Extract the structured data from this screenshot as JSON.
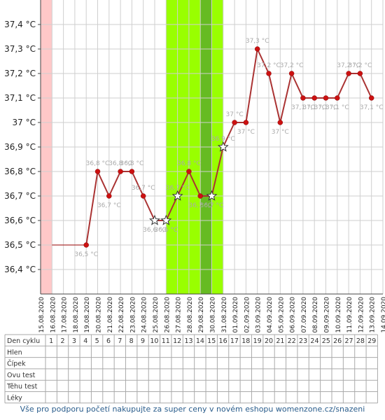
{
  "chart_data": {
    "type": "line",
    "ylim": [
      36.3,
      37.5
    ],
    "y_ticks": [
      "36,4 °C",
      "36,5 °C",
      "36,6 °C",
      "36,7 °C",
      "36,8 °C",
      "36,9 °C",
      "37 °C",
      "37,1 °C",
      "37,2 °C",
      "37,3 °C",
      "37,4 °C"
    ],
    "dates": [
      "15.08.2020",
      "16.08.2020",
      "17.08.2020",
      "18.08.2020",
      "19.08.2020",
      "20.08.2020",
      "21.08.2020",
      "22.08.2020",
      "23.08.2020",
      "24.08.2020",
      "25.08.2020",
      "26.08.2020",
      "27.08.2020",
      "28.08.2020",
      "29.08.2020",
      "30.08.2020",
      "31.08.2020",
      "01.09.2020",
      "02.09.2020",
      "03.09.2020",
      "04.09.2020",
      "05.09.2020",
      "06.09.2020",
      "07.09.2020",
      "08.09.2020",
      "09.09.2020",
      "10.09.2020",
      "11.09.2020",
      "12.09.2020",
      "13.09.2020",
      "14.09.2020"
    ],
    "points": [
      {
        "day": 4,
        "value": 36.5,
        "label": "36,5 °C",
        "star": false
      },
      {
        "day": 5,
        "value": 36.8,
        "label": "36,8 °C",
        "star": false
      },
      {
        "day": 6,
        "value": 36.7,
        "label": "36,7 °C",
        "star": false
      },
      {
        "day": 7,
        "value": 36.8,
        "label": "36,8 °C",
        "star": false
      },
      {
        "day": 8,
        "value": 36.8,
        "label": "36,8 °C",
        "star": false
      },
      {
        "day": 9,
        "value": 36.7,
        "label": "36,7 °C",
        "star": false
      },
      {
        "day": 10,
        "value": 36.6,
        "label": "36,6 °C",
        "star": true
      },
      {
        "day": 11,
        "value": 36.6,
        "label": "36,6 °C",
        "star": true
      },
      {
        "day": 12,
        "value": 36.7,
        "label": "36,7 °C",
        "star": true
      },
      {
        "day": 13,
        "value": 36.8,
        "label": "36,8 °C",
        "star": false
      },
      {
        "day": 14,
        "value": 36.7,
        "label": "36,7 °C",
        "star": false
      },
      {
        "day": 15,
        "value": 36.7,
        "label": "36,7 °C",
        "star": true
      },
      {
        "day": 16,
        "value": 36.9,
        "label": "36,9 °C",
        "star": true
      },
      {
        "day": 17,
        "value": 37.0,
        "label": "37 °C",
        "star": false
      },
      {
        "day": 18,
        "value": 37.0,
        "label": "37 °C",
        "star": false
      },
      {
        "day": 19,
        "value": 37.3,
        "label": "37,3 °C",
        "star": false
      },
      {
        "day": 20,
        "value": 37.2,
        "label": "37,2 °C",
        "star": false
      },
      {
        "day": 21,
        "value": 37.0,
        "label": "37 °C",
        "star": false
      },
      {
        "day": 22,
        "value": 37.2,
        "label": "37,2 °C",
        "star": false
      },
      {
        "day": 23,
        "value": 37.1,
        "label": "37,1 °C",
        "star": false
      },
      {
        "day": 24,
        "value": 37.1,
        "label": "37,1 °C",
        "star": false
      },
      {
        "day": 25,
        "value": 37.1,
        "label": "37,1 °C",
        "star": false
      },
      {
        "day": 26,
        "value": 37.1,
        "label": "37,1 °C",
        "star": false
      },
      {
        "day": 27,
        "value": 37.2,
        "label": "37,2 °C",
        "star": false
      },
      {
        "day": 28,
        "value": 37.2,
        "label": "37,2 °C",
        "star": false
      },
      {
        "day": 29,
        "value": 37.1,
        "label": "37,1 °C",
        "star": false
      }
    ],
    "baseline": {
      "from_date": "16.08.2020",
      "to_day": 4,
      "value": 36.5
    },
    "highlights": [
      {
        "from_day": 0,
        "to_day": 1,
        "color": "#ffc8c8"
      },
      {
        "from_day": 11,
        "to_day": 16,
        "color": "#99ff00"
      },
      {
        "from_day": 14,
        "to_day": 15,
        "color": "#66bb22"
      }
    ],
    "line_color": "#aa3333",
    "marker_color": "#cc1111",
    "grid": true
  },
  "table": {
    "header_label": "Den cyklu",
    "row_labels": [
      "Hlen",
      "Čípek",
      "Ovu test",
      "Těhu test",
      "Léky"
    ],
    "cycle_days": [
      "1",
      "2",
      "3",
      "4",
      "5",
      "6",
      "7",
      "8",
      "9",
      "10",
      "11",
      "12",
      "13",
      "14",
      "15",
      "16",
      "17",
      "18",
      "19",
      "20",
      "21",
      "22",
      "23",
      "24",
      "25",
      "26",
      "27",
      "28",
      "29"
    ]
  },
  "footer": "Vše pro podporu početí nakupujte za super ceny v novém eshopu womenzone.cz/snazeni"
}
